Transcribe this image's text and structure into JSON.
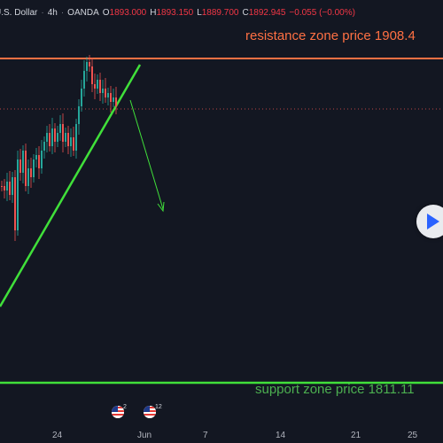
{
  "header": {
    "symbol": "U.S. Dollar",
    "interval": "4h",
    "exchange": "OANDA",
    "open_label": "O",
    "open": "1893.000",
    "high_label": "H",
    "high": "1893.150",
    "low_label": "L",
    "low": "1889.700",
    "close_label": "C",
    "close": "1892.945",
    "change": "−0.055 (−0.00%)"
  },
  "annotations": {
    "resistance": "resistance zone price 1908.4",
    "support": "support zone price 1811.11"
  },
  "time_axis": {
    "labels": [
      "24",
      "Jun",
      "7",
      "14",
      "21",
      "25"
    ]
  },
  "events": [
    {
      "icon": "us-flag-icon",
      "count": "2"
    },
    {
      "icon": "us-flag-icon",
      "count": "12"
    }
  ],
  "colors": {
    "background": "#131722",
    "resistance": "#ff7043",
    "support": "#4caf50",
    "trendline": "#40e03a",
    "up_candle": "#26a69a",
    "down_candle": "#ef5350"
  }
}
